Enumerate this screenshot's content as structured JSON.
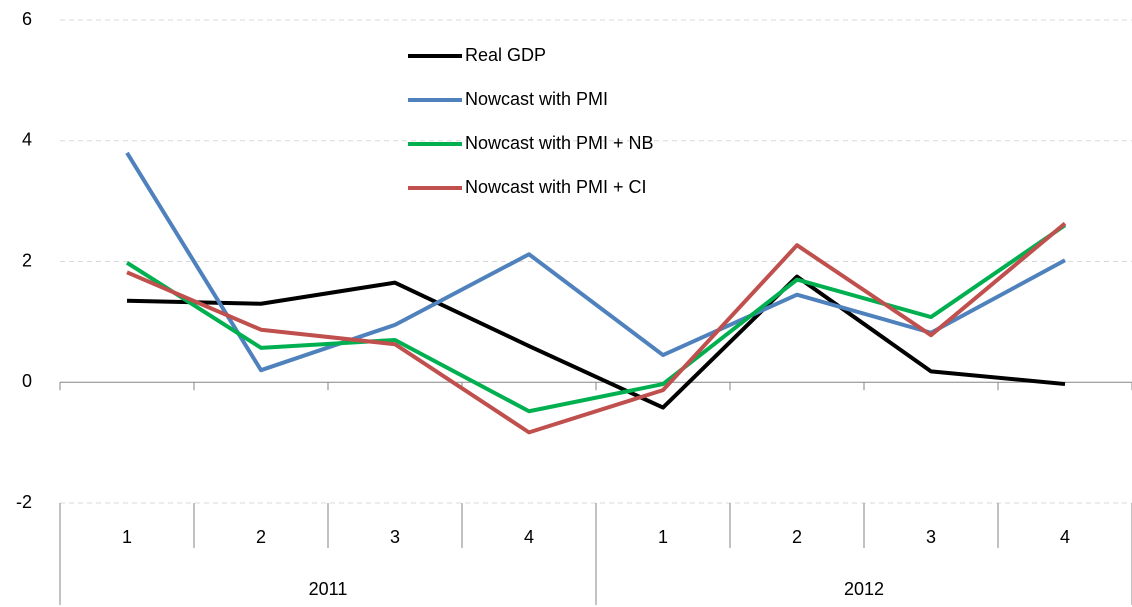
{
  "chart_data": {
    "type": "line",
    "categories": [
      "1",
      "2",
      "3",
      "4",
      "1",
      "2",
      "3",
      "4"
    ],
    "groups": [
      "2011",
      "2012"
    ],
    "series": [
      {
        "name": "Real GDP",
        "color": "#000000",
        "values": [
          1.35,
          1.3,
          1.65,
          0.6,
          -0.42,
          1.75,
          0.18,
          -0.03
        ]
      },
      {
        "name": "Nowcast with PMI",
        "color": "#4f81bd",
        "values": [
          3.8,
          0.2,
          0.95,
          2.12,
          0.45,
          1.45,
          0.82,
          2.02
        ]
      },
      {
        "name": "Nowcast with PMI + NB",
        "color": "#00b050",
        "values": [
          1.98,
          0.57,
          0.7,
          -0.48,
          -0.03,
          1.7,
          1.08,
          2.6
        ]
      },
      {
        "name": "Nowcast with PMI + CI",
        "color": "#c0504d",
        "values": [
          1.82,
          0.87,
          0.63,
          -0.83,
          -0.13,
          2.27,
          0.78,
          2.63
        ]
      }
    ],
    "ylim": [
      -2,
      6
    ],
    "yticks": [
      -2,
      0,
      2,
      4,
      6
    ],
    "grid": true,
    "legend": "upper center"
  }
}
